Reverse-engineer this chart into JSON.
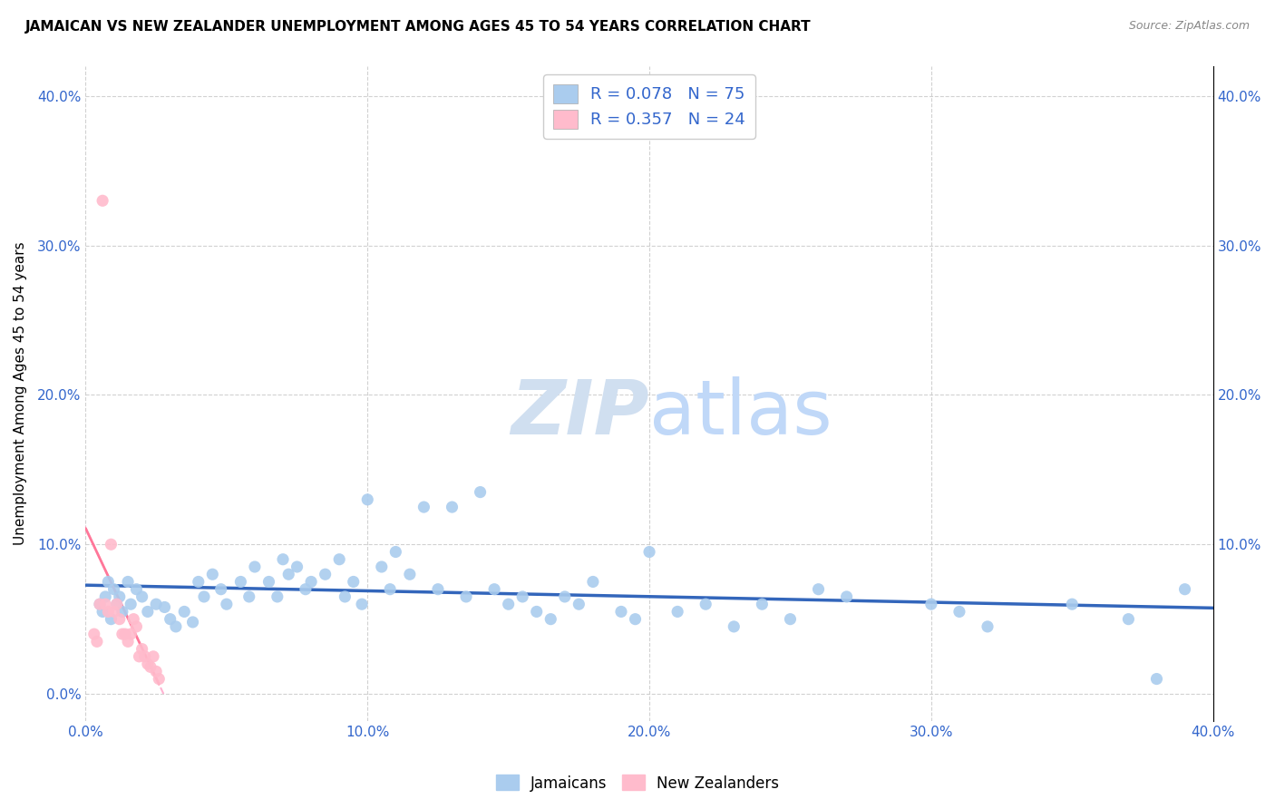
{
  "title": "JAMAICAN VS NEW ZEALANDER UNEMPLOYMENT AMONG AGES 45 TO 54 YEARS CORRELATION CHART",
  "source": "Source: ZipAtlas.com",
  "ylabel": "Unemployment Among Ages 45 to 54 years",
  "xlim": [
    0.0,
    0.4
  ],
  "ylim": [
    -0.018,
    0.42
  ],
  "xtick_vals": [
    0.0,
    0.1,
    0.2,
    0.3,
    0.4
  ],
  "xtick_labels": [
    "0.0%",
    "10.0%",
    "20.0%",
    "30.0%",
    "40.0%"
  ],
  "ytick_vals": [
    0.0,
    0.1,
    0.2,
    0.3,
    0.4
  ],
  "ytick_labels": [
    "0.0%",
    "10.0%",
    "20.0%",
    "30.0%",
    "40.0%"
  ],
  "right_ytick_vals": [
    0.1,
    0.2,
    0.3,
    0.4
  ],
  "right_ytick_labels": [
    "10.0%",
    "20.0%",
    "30.0%",
    "40.0%"
  ],
  "jamaican_color": "#aaccee",
  "nz_color": "#ffbbcc",
  "jamaican_trendline_color": "#3366bb",
  "nz_trendline_color": "#ffaacc",
  "tick_color": "#3366cc",
  "label_color": "#000000",
  "grid_color": "#cccccc",
  "watermark_color": "#d0dff0",
  "background_color": "#ffffff",
  "jamaican_x": [
    0.005,
    0.006,
    0.007,
    0.008,
    0.009,
    0.01,
    0.011,
    0.012,
    0.013,
    0.015,
    0.016,
    0.018,
    0.02,
    0.022,
    0.025,
    0.028,
    0.03,
    0.032,
    0.035,
    0.038,
    0.04,
    0.042,
    0.045,
    0.048,
    0.05,
    0.055,
    0.058,
    0.06,
    0.065,
    0.068,
    0.07,
    0.072,
    0.075,
    0.078,
    0.08,
    0.085,
    0.09,
    0.092,
    0.095,
    0.098,
    0.1,
    0.105,
    0.108,
    0.11,
    0.115,
    0.12,
    0.125,
    0.13,
    0.135,
    0.14,
    0.145,
    0.15,
    0.155,
    0.16,
    0.165,
    0.17,
    0.175,
    0.18,
    0.19,
    0.195,
    0.2,
    0.21,
    0.22,
    0.23,
    0.24,
    0.25,
    0.26,
    0.27,
    0.3,
    0.31,
    0.32,
    0.35,
    0.37,
    0.38,
    0.39
  ],
  "jamaican_y": [
    0.06,
    0.055,
    0.065,
    0.075,
    0.05,
    0.07,
    0.06,
    0.065,
    0.055,
    0.075,
    0.06,
    0.07,
    0.065,
    0.055,
    0.06,
    0.058,
    0.05,
    0.045,
    0.055,
    0.048,
    0.075,
    0.065,
    0.08,
    0.07,
    0.06,
    0.075,
    0.065,
    0.085,
    0.075,
    0.065,
    0.09,
    0.08,
    0.085,
    0.07,
    0.075,
    0.08,
    0.09,
    0.065,
    0.075,
    0.06,
    0.13,
    0.085,
    0.07,
    0.095,
    0.08,
    0.125,
    0.07,
    0.125,
    0.065,
    0.135,
    0.07,
    0.06,
    0.065,
    0.055,
    0.05,
    0.065,
    0.06,
    0.075,
    0.055,
    0.05,
    0.095,
    0.055,
    0.06,
    0.045,
    0.06,
    0.05,
    0.07,
    0.065,
    0.06,
    0.055,
    0.045,
    0.06,
    0.05,
    0.01,
    0.07
  ],
  "nz_x": [
    0.003,
    0.004,
    0.005,
    0.006,
    0.007,
    0.008,
    0.009,
    0.01,
    0.011,
    0.012,
    0.013,
    0.014,
    0.015,
    0.016,
    0.017,
    0.018,
    0.019,
    0.02,
    0.021,
    0.022,
    0.023,
    0.024,
    0.025,
    0.026
  ],
  "nz_y": [
    0.04,
    0.035,
    0.06,
    0.33,
    0.06,
    0.055,
    0.1,
    0.055,
    0.06,
    0.05,
    0.04,
    0.04,
    0.035,
    0.04,
    0.05,
    0.045,
    0.025,
    0.03,
    0.025,
    0.02,
    0.018,
    0.025,
    0.015,
    0.01
  ],
  "nz_trend_x0": 0.0,
  "nz_trend_x1": 0.028,
  "jam_trend_x0": 0.0,
  "jam_trend_x1": 0.4
}
